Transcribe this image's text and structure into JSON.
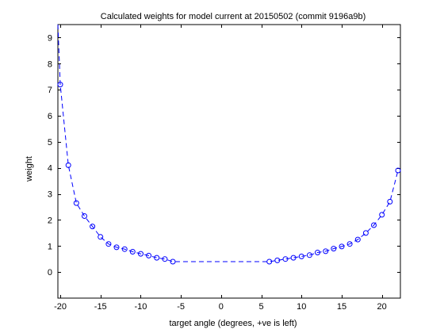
{
  "chart_data": {
    "type": "line",
    "title": "Calculated weights for model current at 20150502 (commit 9196a9b)",
    "xlabel": "target angle (degrees, +ve is left)",
    "ylabel": "weight",
    "xlim": [
      -20.3,
      22.3
    ],
    "ylim": [
      -1,
      9.5
    ],
    "xticks": [
      "-20",
      "-15",
      "-10",
      "-5",
      "0",
      "5",
      "10",
      "15",
      "20"
    ],
    "yticks": [
      "0",
      "1",
      "2",
      "3",
      "4",
      "5",
      "6",
      "7",
      "8",
      "9"
    ],
    "grid": false,
    "series": [
      {
        "color": "#0000ff",
        "line_style": "dashed",
        "marker": "circle",
        "x": [
          -20,
          -19,
          -18,
          -17,
          -16,
          -15,
          -14,
          -13,
          -12,
          -11,
          -10,
          -9,
          -8,
          -7,
          -6,
          6,
          7,
          8,
          9,
          10,
          11,
          12,
          13,
          14,
          15,
          16,
          17,
          18,
          19,
          20,
          21,
          22
        ],
        "y": [
          7.2,
          4.1,
          2.65,
          2.15,
          1.75,
          1.35,
          1.08,
          0.95,
          0.88,
          0.78,
          0.7,
          0.63,
          0.55,
          0.5,
          0.4,
          0.4,
          0.45,
          0.5,
          0.55,
          0.6,
          0.65,
          0.75,
          0.8,
          0.9,
          0.98,
          1.08,
          1.25,
          1.5,
          1.8,
          2.2,
          2.7,
          3.9
        ],
        "line_extra_start": {
          "x": -20.3,
          "y": 9.5
        }
      }
    ]
  }
}
